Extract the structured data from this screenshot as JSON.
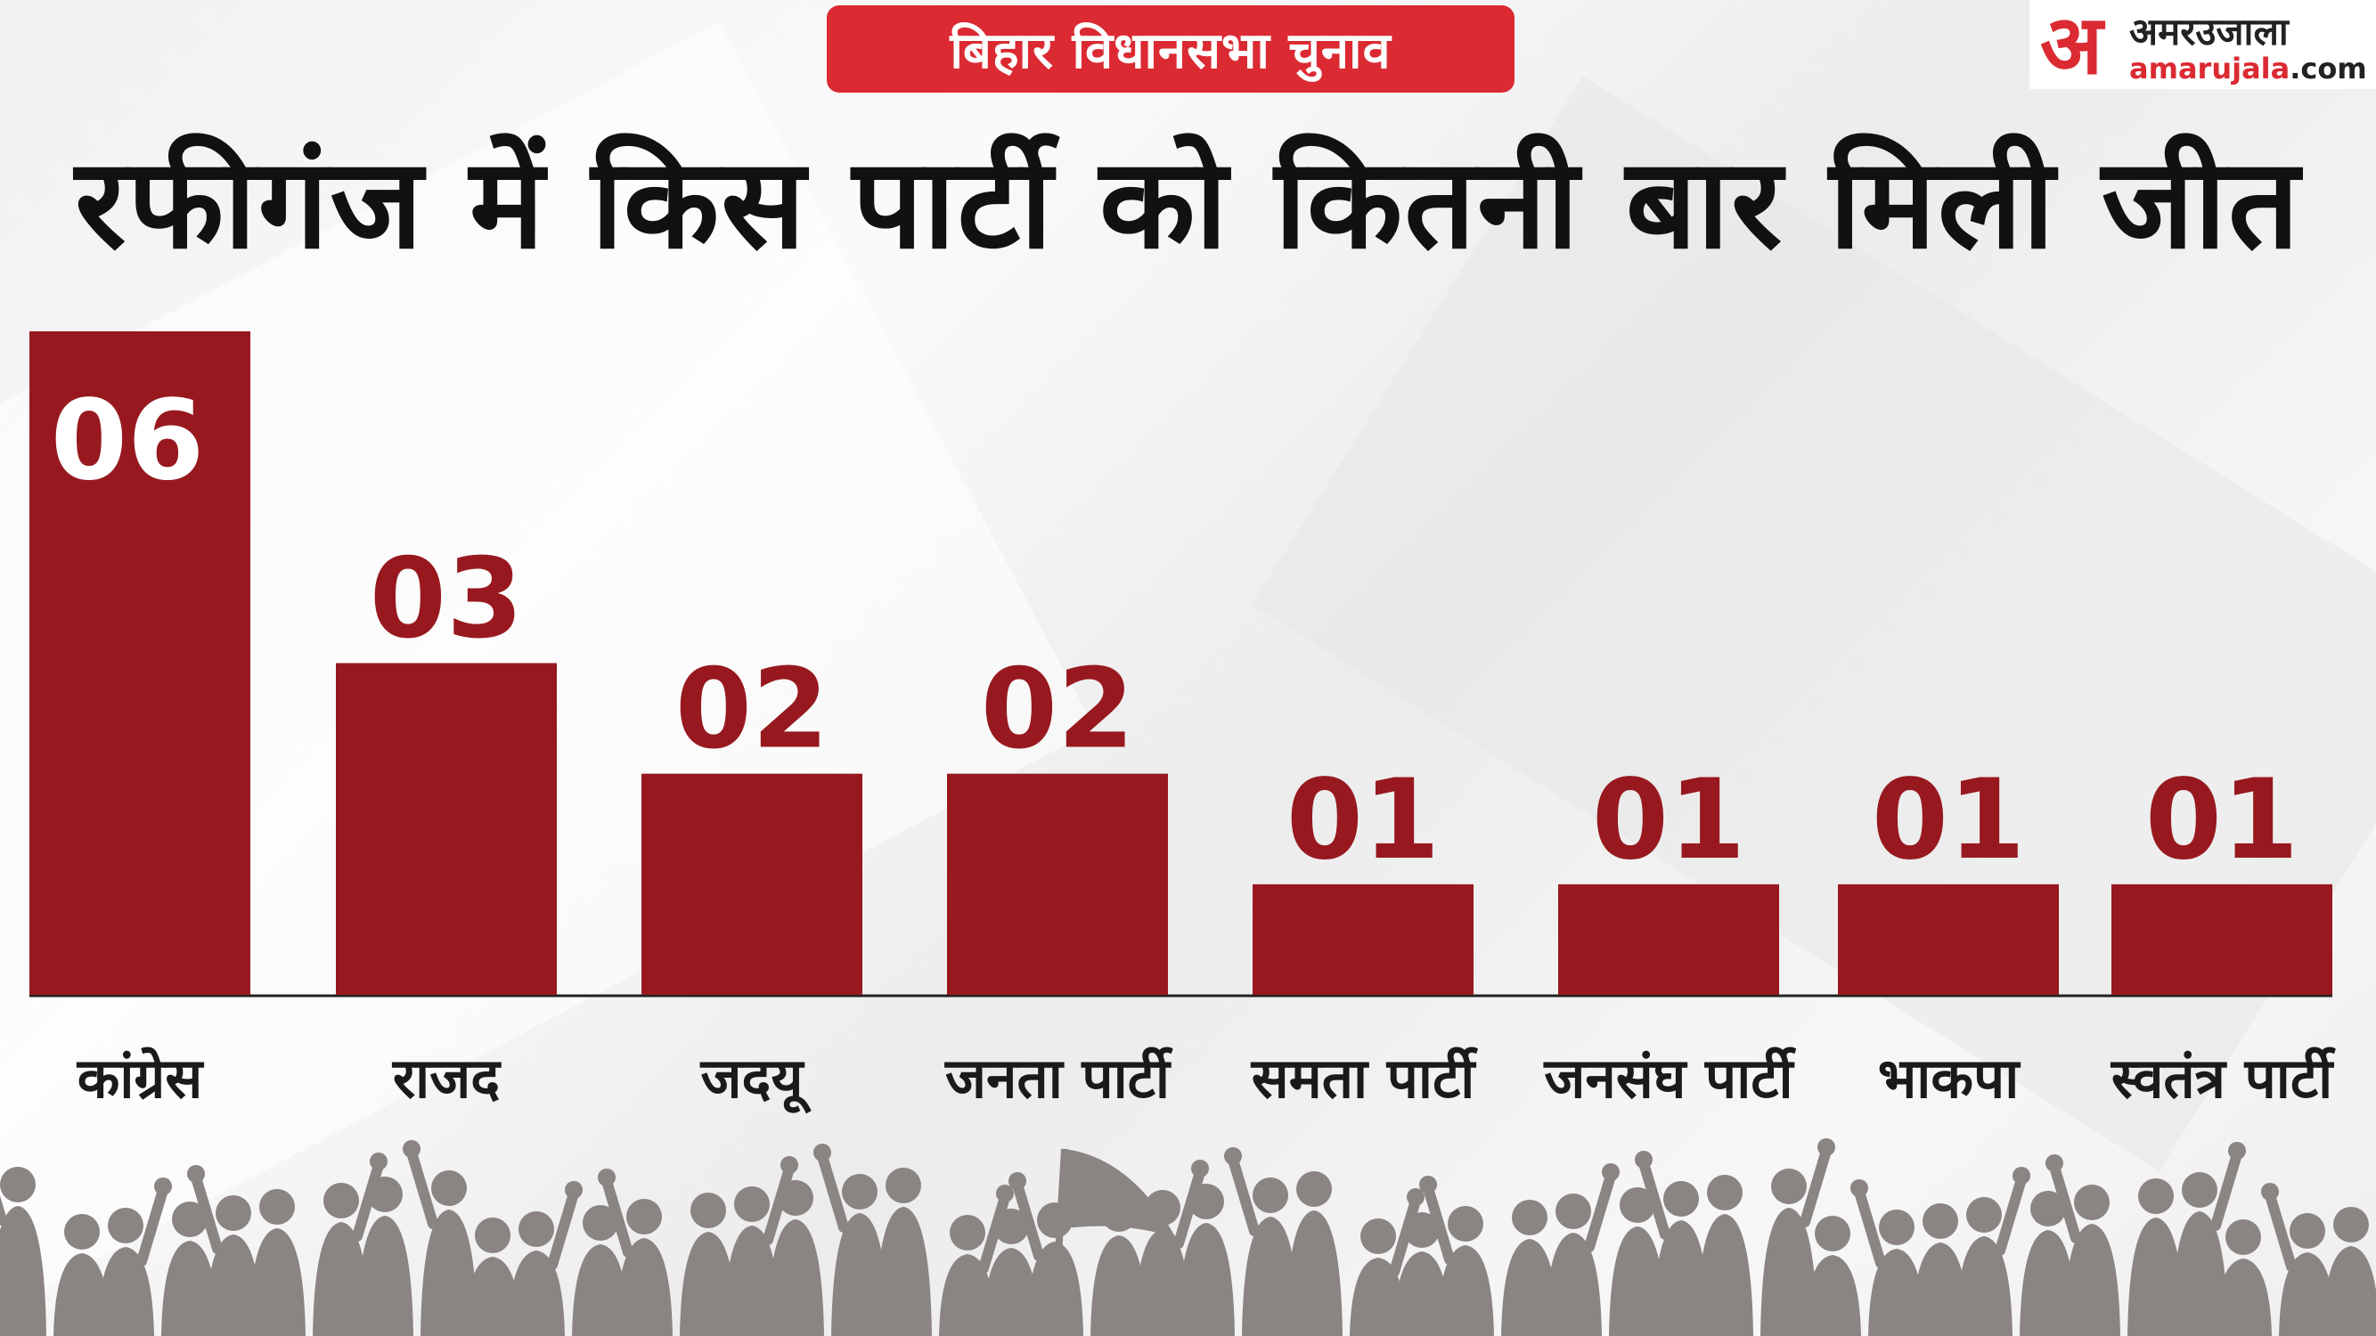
{
  "header": {
    "banner": "बिहार विधानसभा चुनाव",
    "title": "रफीगंज में किस पार्टी को कितनी बार मिली जीत"
  },
  "logo": {
    "mark": "अ",
    "name": "अमरउजाला",
    "url_brand": "amarujala",
    "url_tld": ".com"
  },
  "colors": {
    "bar": "#97191f",
    "banner": "#db2a32",
    "crowd": "#8a8483"
  },
  "chart_data": {
    "type": "bar",
    "title": "रफीगंज में किस पार्टी को कितनी बार मिली जीत",
    "categories": [
      "कांग्रेस",
      "राजद",
      "जदयू",
      "जनता पार्टी",
      "समता पार्टी",
      "जनसंघ पार्टी",
      "भाकपा",
      "स्वतंत्र पार्टी"
    ],
    "values": [
      6,
      3,
      2,
      2,
      1,
      1,
      1,
      1
    ],
    "value_labels": [
      "06",
      "03",
      "02",
      "02",
      "01",
      "01",
      "01",
      "01"
    ],
    "xlabel": "",
    "ylabel": "",
    "ylim": [
      0,
      6
    ],
    "grid": false,
    "legend": "none"
  }
}
